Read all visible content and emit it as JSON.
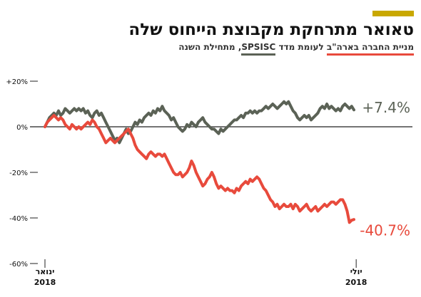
{
  "colors": {
    "accent": "#c9a800",
    "company": "#e84a3c",
    "index": "#5b6256",
    "axis": "#222222",
    "text": "#111111"
  },
  "title": "טאואר מתרחקת מקבוצת הייחוס שלה",
  "subtitle": {
    "company_label": "מניית החברה בארה\"ב",
    "connector": " לעומת מדד ",
    "index_label": "SPSISC",
    "suffix": ", מתחילת השנה"
  },
  "chart_data": {
    "type": "line",
    "title": "טאואר מתרחקת מקבוצת הייחוס שלה",
    "xlabel": "",
    "ylabel": "",
    "ylim": [
      -60,
      20
    ],
    "yticks": [
      20,
      0,
      -20,
      -40,
      -60
    ],
    "ytick_labels": [
      "+20%",
      "0%",
      "-20%",
      "-40%",
      "-60%"
    ],
    "x_ticks": [
      {
        "x": 0,
        "label": "ינואר",
        "year": "2018"
      },
      {
        "x": 138,
        "label": "יולי",
        "year": "2018"
      }
    ],
    "grid": false,
    "series": [
      {
        "name": "SPSISC",
        "end_label": "+7.4%",
        "points": [
          [
            0,
            0
          ],
          [
            1,
            2
          ],
          [
            2,
            4
          ],
          [
            3,
            5
          ],
          [
            4,
            6
          ],
          [
            5,
            5
          ],
          [
            6,
            7
          ],
          [
            7,
            5
          ],
          [
            8,
            6
          ],
          [
            9,
            8
          ],
          [
            10,
            7
          ],
          [
            11,
            6
          ],
          [
            12,
            7
          ],
          [
            13,
            8
          ],
          [
            14,
            7
          ],
          [
            15,
            8
          ],
          [
            16,
            7
          ],
          [
            17,
            8
          ],
          [
            18,
            6
          ],
          [
            19,
            7
          ],
          [
            20,
            5
          ],
          [
            21,
            4
          ],
          [
            22,
            6
          ],
          [
            23,
            7
          ],
          [
            24,
            5
          ],
          [
            25,
            6
          ],
          [
            26,
            4
          ],
          [
            27,
            2
          ],
          [
            28,
            0
          ],
          [
            29,
            -2
          ],
          [
            30,
            -4
          ],
          [
            31,
            -6
          ],
          [
            32,
            -5
          ],
          [
            33,
            -7
          ],
          [
            34,
            -5
          ],
          [
            35,
            -3
          ],
          [
            36,
            -1
          ],
          [
            37,
            -3
          ],
          [
            38,
            -2
          ],
          [
            39,
            0
          ],
          [
            40,
            2
          ],
          [
            41,
            1
          ],
          [
            42,
            3
          ],
          [
            43,
            2
          ],
          [
            44,
            4
          ],
          [
            45,
            5
          ],
          [
            46,
            6
          ],
          [
            47,
            5
          ],
          [
            48,
            7
          ],
          [
            49,
            6
          ],
          [
            50,
            8
          ],
          [
            51,
            7
          ],
          [
            52,
            9
          ],
          [
            53,
            7
          ],
          [
            54,
            6
          ],
          [
            55,
            5
          ],
          [
            56,
            3
          ],
          [
            57,
            4
          ],
          [
            58,
            2
          ],
          [
            59,
            0
          ],
          [
            60,
            -1
          ],
          [
            61,
            -2
          ],
          [
            62,
            -1
          ],
          [
            63,
            1
          ],
          [
            64,
            0
          ],
          [
            65,
            2
          ],
          [
            66,
            1
          ],
          [
            67,
            0
          ],
          [
            68,
            2
          ],
          [
            69,
            3
          ],
          [
            70,
            4
          ],
          [
            71,
            2
          ],
          [
            72,
            1
          ],
          [
            73,
            0
          ],
          [
            74,
            -1
          ],
          [
            75,
            -1
          ],
          [
            76,
            -2
          ],
          [
            77,
            -3
          ],
          [
            78,
            -1
          ],
          [
            79,
            -2
          ],
          [
            80,
            -1
          ],
          [
            81,
            0
          ],
          [
            82,
            1
          ],
          [
            83,
            2
          ],
          [
            84,
            3
          ],
          [
            85,
            3
          ],
          [
            86,
            4
          ],
          [
            87,
            5
          ],
          [
            88,
            4
          ],
          [
            89,
            6
          ],
          [
            90,
            6
          ],
          [
            91,
            7
          ],
          [
            92,
            6
          ],
          [
            93,
            7
          ],
          [
            94,
            6
          ],
          [
            95,
            7
          ],
          [
            96,
            7
          ],
          [
            97,
            8
          ],
          [
            98,
            9
          ],
          [
            99,
            8
          ],
          [
            100,
            9
          ],
          [
            101,
            10
          ],
          [
            102,
            9
          ],
          [
            103,
            8
          ],
          [
            104,
            9
          ],
          [
            105,
            10
          ],
          [
            106,
            11
          ],
          [
            107,
            10
          ],
          [
            108,
            11
          ],
          [
            109,
            9
          ],
          [
            110,
            7
          ],
          [
            111,
            6
          ],
          [
            112,
            4
          ],
          [
            113,
            3
          ],
          [
            114,
            4
          ],
          [
            115,
            5
          ],
          [
            116,
            4
          ],
          [
            117,
            5
          ],
          [
            118,
            3
          ],
          [
            119,
            4
          ],
          [
            120,
            5
          ],
          [
            121,
            6
          ],
          [
            122,
            8
          ],
          [
            123,
            9
          ],
          [
            124,
            8
          ],
          [
            125,
            10
          ],
          [
            126,
            8
          ],
          [
            127,
            9
          ],
          [
            128,
            8
          ],
          [
            129,
            7
          ],
          [
            130,
            8
          ],
          [
            131,
            7
          ],
          [
            132,
            9
          ],
          [
            133,
            10
          ],
          [
            134,
            9
          ],
          [
            135,
            8
          ],
          [
            136,
            9
          ],
          [
            137,
            7.4
          ]
        ]
      },
      {
        "name": "טאואר",
        "end_label": "-40.7%",
        "points": [
          [
            0,
            0
          ],
          [
            1,
            2
          ],
          [
            2,
            3
          ],
          [
            3,
            4
          ],
          [
            4,
            5
          ],
          [
            5,
            4
          ],
          [
            6,
            3
          ],
          [
            7,
            4
          ],
          [
            8,
            3
          ],
          [
            9,
            1
          ],
          [
            10,
            0
          ],
          [
            11,
            -1
          ],
          [
            12,
            1
          ],
          [
            13,
            0
          ],
          [
            14,
            -1
          ],
          [
            15,
            0
          ],
          [
            16,
            -1
          ],
          [
            17,
            0
          ],
          [
            18,
            1
          ],
          [
            19,
            2
          ],
          [
            20,
            1
          ],
          [
            21,
            3
          ],
          [
            22,
            2
          ],
          [
            23,
            0
          ],
          [
            24,
            -1
          ],
          [
            25,
            -3
          ],
          [
            26,
            -5
          ],
          [
            27,
            -7
          ],
          [
            28,
            -6
          ],
          [
            29,
            -5
          ],
          [
            30,
            -6
          ],
          [
            31,
            -7
          ],
          [
            32,
            -6
          ],
          [
            33,
            -5
          ],
          [
            34,
            -4
          ],
          [
            35,
            -3
          ],
          [
            36,
            -2
          ],
          [
            37,
            -1
          ],
          [
            38,
            -3
          ],
          [
            39,
            -5
          ],
          [
            40,
            -8
          ],
          [
            41,
            -10
          ],
          [
            42,
            -11
          ],
          [
            43,
            -12
          ],
          [
            44,
            -13
          ],
          [
            45,
            -14
          ],
          [
            46,
            -12
          ],
          [
            47,
            -11
          ],
          [
            48,
            -12
          ],
          [
            49,
            -13
          ],
          [
            50,
            -12
          ],
          [
            51,
            -12
          ],
          [
            52,
            -13
          ],
          [
            53,
            -12
          ],
          [
            54,
            -14
          ],
          [
            55,
            -16
          ],
          [
            56,
            -18
          ],
          [
            57,
            -20
          ],
          [
            58,
            -21
          ],
          [
            59,
            -21
          ],
          [
            60,
            -20
          ],
          [
            61,
            -22
          ],
          [
            62,
            -21
          ],
          [
            63,
            -20
          ],
          [
            64,
            -18
          ],
          [
            65,
            -15
          ],
          [
            66,
            -17
          ],
          [
            67,
            -20
          ],
          [
            68,
            -22
          ],
          [
            69,
            -24
          ],
          [
            70,
            -26
          ],
          [
            71,
            -25
          ],
          [
            72,
            -23
          ],
          [
            73,
            -22
          ],
          [
            74,
            -20
          ],
          [
            75,
            -22
          ],
          [
            76,
            -25
          ],
          [
            77,
            -27
          ],
          [
            78,
            -26
          ],
          [
            79,
            -27
          ],
          [
            80,
            -28
          ],
          [
            81,
            -27
          ],
          [
            82,
            -28
          ],
          [
            83,
            -28
          ],
          [
            84,
            -29
          ],
          [
            85,
            -27
          ],
          [
            86,
            -28
          ],
          [
            87,
            -26
          ],
          [
            88,
            -25
          ],
          [
            89,
            -24
          ],
          [
            90,
            -25
          ],
          [
            91,
            -23
          ],
          [
            92,
            -24
          ],
          [
            93,
            -23
          ],
          [
            94,
            -22
          ],
          [
            95,
            -23
          ],
          [
            96,
            -25
          ],
          [
            97,
            -27
          ],
          [
            98,
            -28
          ],
          [
            99,
            -30
          ],
          [
            100,
            -32
          ],
          [
            101,
            -33
          ],
          [
            102,
            -35
          ],
          [
            103,
            -34
          ],
          [
            104,
            -36
          ],
          [
            105,
            -35
          ],
          [
            106,
            -34
          ],
          [
            107,
            -35
          ],
          [
            108,
            -35
          ],
          [
            109,
            -34
          ],
          [
            110,
            -36
          ],
          [
            111,
            -34
          ],
          [
            112,
            -35
          ],
          [
            113,
            -37
          ],
          [
            114,
            -36
          ],
          [
            115,
            -35
          ],
          [
            116,
            -34
          ],
          [
            117,
            -36
          ],
          [
            118,
            -37
          ],
          [
            119,
            -36
          ],
          [
            120,
            -35
          ],
          [
            121,
            -37
          ],
          [
            122,
            -36
          ],
          [
            123,
            -35
          ],
          [
            124,
            -34
          ],
          [
            125,
            -35
          ],
          [
            126,
            -34
          ],
          [
            127,
            -33
          ],
          [
            128,
            -33
          ],
          [
            129,
            -34
          ],
          [
            130,
            -33
          ],
          [
            131,
            -32
          ],
          [
            132,
            -32
          ],
          [
            133,
            -34
          ],
          [
            134,
            -37
          ],
          [
            135,
            -42
          ],
          [
            136,
            -41
          ],
          [
            137,
            -40.7
          ]
        ]
      }
    ]
  }
}
